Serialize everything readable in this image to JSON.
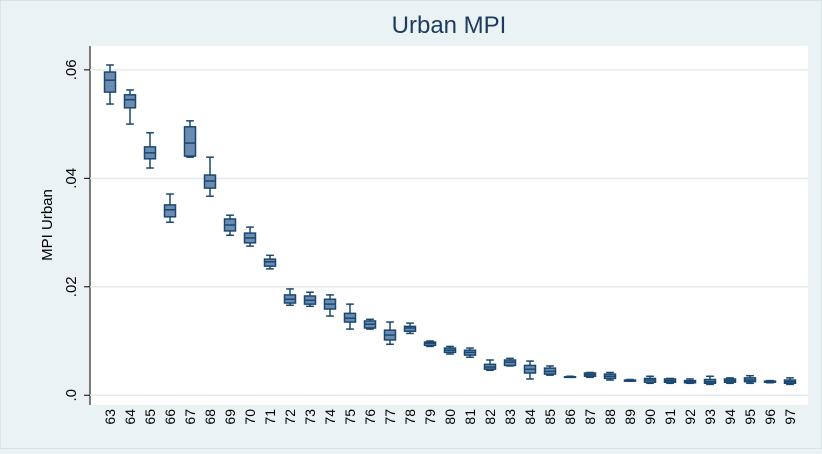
{
  "chart_data": {
    "type": "box",
    "title": "Urban MPI",
    "y_label": "MPI Urban",
    "color": "#6b8bb0",
    "edge_color": "#1a476f",
    "categories": [
      "63",
      "64",
      "65",
      "66",
      "67",
      "68",
      "69",
      "70",
      "71",
      "72",
      "73",
      "74",
      "75",
      "76",
      "77",
      "78",
      "79",
      "80",
      "81",
      "82",
      "83",
      "84",
      "85",
      "86",
      "87",
      "88",
      "89",
      "90",
      "91",
      "92",
      "93",
      "94",
      "95",
      "96",
      "97"
    ],
    "max": [
      0.0609,
      0.0563,
      0.0484,
      0.0371,
      0.0506,
      0.0439,
      0.0332,
      0.031,
      0.0258,
      0.0196,
      0.019,
      0.0185,
      0.0168,
      0.014,
      0.0135,
      0.0133,
      0.01,
      0.009,
      0.0087,
      0.0065,
      0.0068,
      0.0063,
      0.0054,
      0.0035,
      0.0042,
      0.0042,
      0.0029,
      0.0035,
      0.0031,
      0.003,
      0.0035,
      0.0032,
      0.0036,
      0.0027,
      0.0032
    ],
    "q3": [
      0.0596,
      0.0554,
      0.0458,
      0.0351,
      0.0495,
      0.0406,
      0.0325,
      0.0299,
      0.0251,
      0.0185,
      0.0183,
      0.0177,
      0.0151,
      0.0137,
      0.012,
      0.0127,
      0.0098,
      0.0087,
      0.0083,
      0.0057,
      0.0065,
      0.0055,
      0.005,
      0.0034,
      0.0041,
      0.0039,
      0.0028,
      0.0031,
      0.003,
      0.0027,
      0.0029,
      0.003,
      0.0032,
      0.0026,
      0.0028
    ],
    "median": [
      0.0581,
      0.0545,
      0.0447,
      0.0342,
      0.0465,
      0.0395,
      0.0314,
      0.029,
      0.0246,
      0.0177,
      0.0175,
      0.0168,
      0.0142,
      0.0131,
      0.0111,
      0.0124,
      0.0096,
      0.0083,
      0.0079,
      0.0052,
      0.0061,
      0.0048,
      0.0044,
      0.0034,
      0.0038,
      0.0035,
      0.0027,
      0.0028,
      0.0027,
      0.0025,
      0.0025,
      0.0027,
      0.0028,
      0.0025,
      0.0025
    ],
    "q1": [
      0.0559,
      0.053,
      0.0436,
      0.0329,
      0.0441,
      0.0382,
      0.0303,
      0.0281,
      0.0238,
      0.017,
      0.0168,
      0.0159,
      0.0135,
      0.0124,
      0.0102,
      0.0118,
      0.0092,
      0.0079,
      0.0074,
      0.0048,
      0.0055,
      0.0041,
      0.0039,
      0.0033,
      0.0035,
      0.0031,
      0.0026,
      0.0024,
      0.0024,
      0.0023,
      0.0022,
      0.0024,
      0.0025,
      0.0024,
      0.0022
    ],
    "min": [
      0.0537,
      0.05,
      0.0419,
      0.0319,
      0.0439,
      0.0367,
      0.0295,
      0.0275,
      0.0233,
      0.0166,
      0.0164,
      0.0146,
      0.0122,
      0.0122,
      0.0094,
      0.0114,
      0.009,
      0.0076,
      0.007,
      0.0046,
      0.0054,
      0.003,
      0.0037,
      0.0033,
      0.0033,
      0.0028,
      0.0026,
      0.0022,
      0.0022,
      0.0022,
      0.002,
      0.0022,
      0.0022,
      0.0023,
      0.002
    ],
    "ylim": [
      -0.0018,
      0.0644
    ],
    "yticks": [
      {
        "value": 0,
        "label": ".0"
      },
      {
        "value": 0.02,
        "label": ".02"
      },
      {
        "value": 0.04,
        "label": ".04"
      },
      {
        "value": 0.06,
        "label": ".06"
      }
    ],
    "grid": true
  }
}
